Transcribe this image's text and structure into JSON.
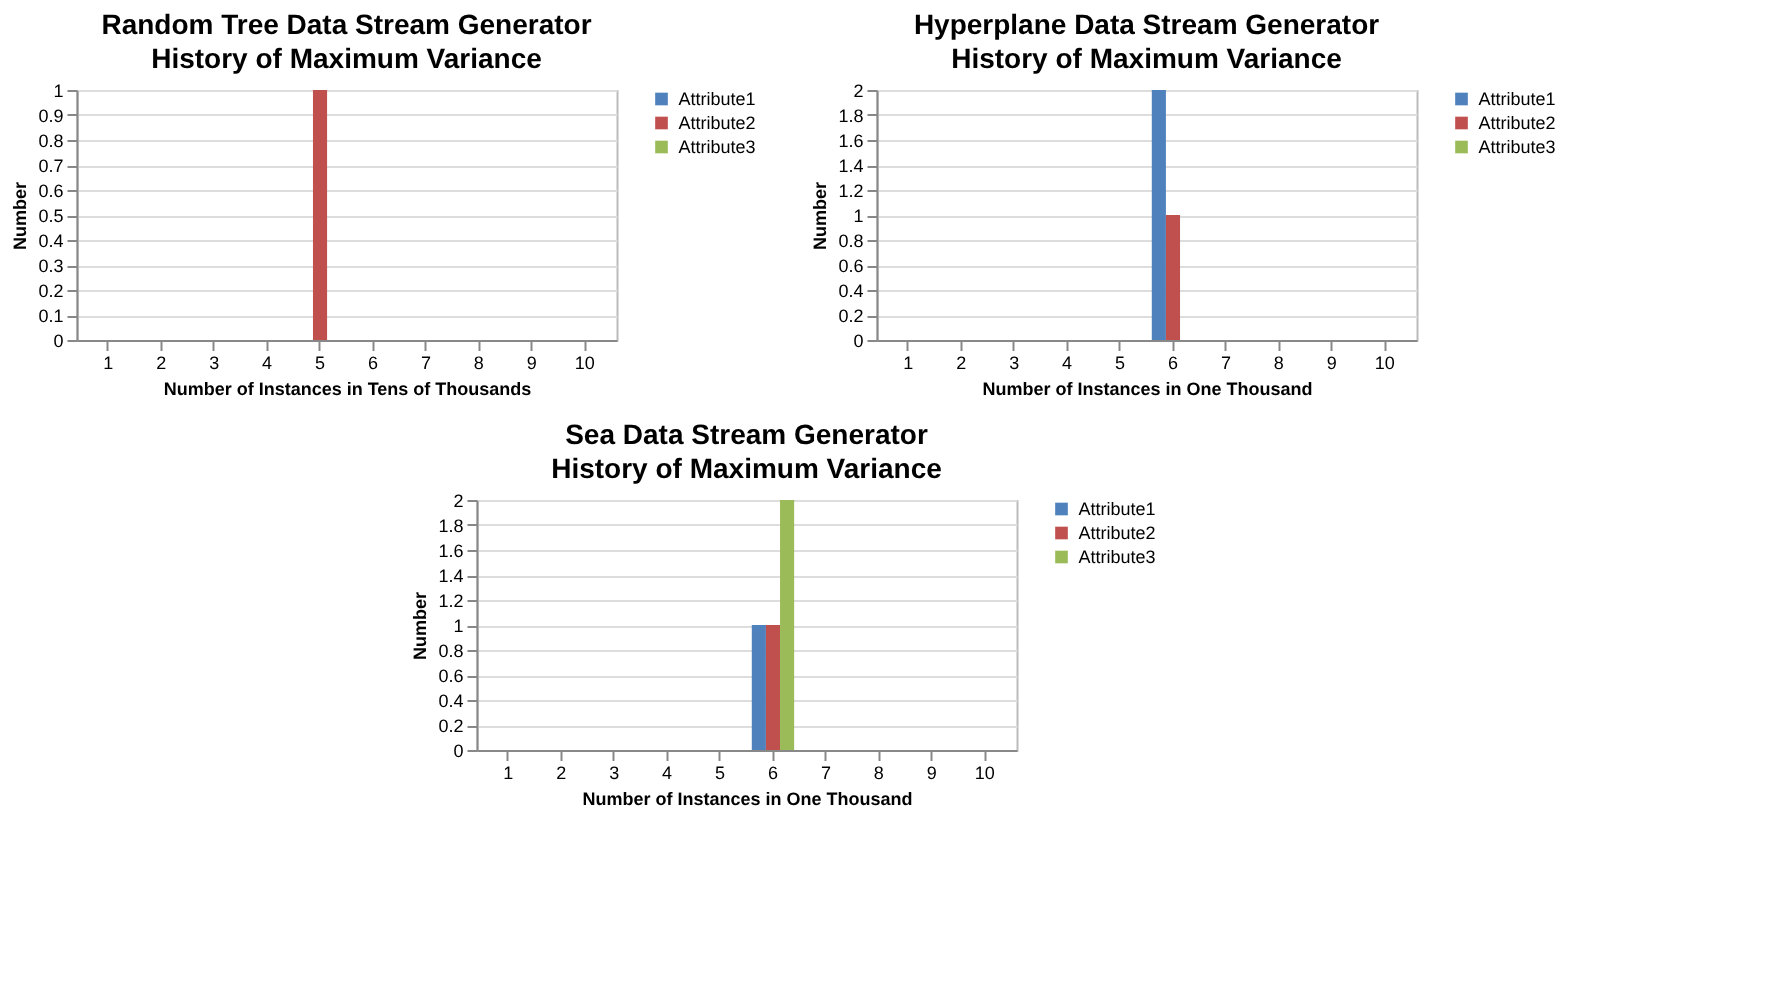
{
  "chart_data": [
    {
      "type": "bar",
      "title": "Random Tree Data Stream Generator",
      "subtitle": "History of Maximum Variance",
      "xlabel": "Number of Instances in Tens of Thousands",
      "ylabel": "Number",
      "categories": [
        "1",
        "2",
        "3",
        "4",
        "5",
        "6",
        "7",
        "8",
        "9",
        "10"
      ],
      "series": [
        {
          "name": "Attribute1",
          "color": "#4f81bd",
          "values": [
            0,
            0,
            0,
            0,
            0,
            0,
            0,
            0,
            0,
            0
          ]
        },
        {
          "name": "Attribute2",
          "color": "#c0504d",
          "values": [
            0,
            0,
            0,
            0,
            1,
            0,
            0,
            0,
            0,
            0
          ]
        },
        {
          "name": "Attribute3",
          "color": "#9bbb59",
          "values": [
            0,
            0,
            0,
            0,
            0,
            0,
            0,
            0,
            0,
            0
          ]
        }
      ],
      "ylim": [
        0,
        1
      ],
      "yticks": [
        0,
        0.1,
        0.2,
        0.3,
        0.4,
        0.5,
        0.6,
        0.7,
        0.8,
        0.9,
        1
      ],
      "grid": "y",
      "legend": "right"
    },
    {
      "type": "bar",
      "title": "Hyperplane Data Stream Generator",
      "subtitle": "History of Maximum Variance",
      "xlabel": "Number of Instances in One Thousand",
      "ylabel": "Number",
      "categories": [
        "1",
        "2",
        "3",
        "4",
        "5",
        "6",
        "7",
        "8",
        "9",
        "10"
      ],
      "series": [
        {
          "name": "Attribute1",
          "color": "#4f81bd",
          "values": [
            0,
            0,
            0,
            0,
            0,
            2,
            0,
            0,
            0,
            0
          ]
        },
        {
          "name": "Attribute2",
          "color": "#c0504d",
          "values": [
            0,
            0,
            0,
            0,
            0,
            1,
            0,
            0,
            0,
            0
          ]
        },
        {
          "name": "Attribute3",
          "color": "#9bbb59",
          "values": [
            0,
            0,
            0,
            0,
            0,
            0,
            0,
            0,
            0,
            0
          ]
        }
      ],
      "ylim": [
        0,
        2
      ],
      "yticks": [
        0,
        0.2,
        0.4,
        0.6,
        0.8,
        1,
        1.2,
        1.4,
        1.6,
        1.8,
        2
      ],
      "grid": "y",
      "legend": "right"
    },
    {
      "type": "bar",
      "title": "Sea Data Stream Generator",
      "subtitle": "History of Maximum Variance",
      "xlabel": "Number of Instances in One Thousand",
      "ylabel": "Number",
      "categories": [
        "1",
        "2",
        "3",
        "4",
        "5",
        "6",
        "7",
        "8",
        "9",
        "10"
      ],
      "series": [
        {
          "name": "Attribute1",
          "color": "#4f81bd",
          "values": [
            0,
            0,
            0,
            0,
            0,
            1,
            0,
            0,
            0,
            0
          ]
        },
        {
          "name": "Attribute2",
          "color": "#c0504d",
          "values": [
            0,
            0,
            0,
            0,
            0,
            1,
            0,
            0,
            0,
            0
          ]
        },
        {
          "name": "Attribute3",
          "color": "#9bbb59",
          "values": [
            0,
            0,
            0,
            0,
            0,
            2,
            0,
            0,
            0,
            0
          ]
        }
      ],
      "ylim": [
        0,
        2
      ],
      "yticks": [
        0,
        0.2,
        0.4,
        0.6,
        0.8,
        1,
        1.2,
        1.4,
        1.6,
        1.8,
        2
      ],
      "grid": "y",
      "legend": "right"
    }
  ]
}
